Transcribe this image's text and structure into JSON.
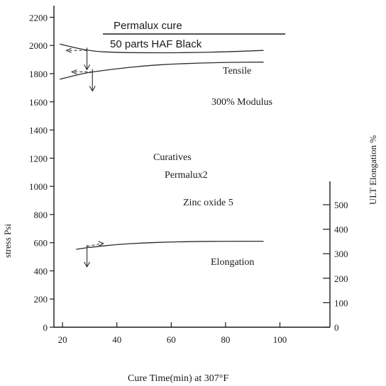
{
  "chart_data": {
    "type": "line",
    "title_line1": "Permalux cure",
    "title_line2": "50 parts HAF Black",
    "xlabel": "Cure Time(min) at 307°F",
    "ylabel_left": "stress Psi",
    "ylabel_right": "ULT Elongation %",
    "xlim": [
      0,
      105
    ],
    "ylim_left": [
      0,
      2400
    ],
    "ylim_right": [
      0,
      500
    ],
    "x_ticks": [
      20,
      40,
      60,
      80,
      100
    ],
    "y_ticks_left": [
      0,
      200,
      400,
      600,
      800,
      1000,
      1200,
      1400,
      1600,
      1800,
      2000,
      2200
    ],
    "y_ticks_right": [
      0,
      100,
      200,
      300,
      400,
      500
    ],
    "grid": false,
    "annotation_lines": [
      "Curatives",
      "Permalux2",
      "Zinc oxide 5"
    ],
    "series": [
      {
        "name": "Tensile",
        "axis": "left",
        "x": [
          19,
          30,
          40,
          50,
          60,
          70,
          80,
          94
        ],
        "y": [
          2010,
          1960,
          1950,
          1948,
          1948,
          1950,
          1955,
          1965
        ]
      },
      {
        "name": "300% Modulus",
        "axis": "left",
        "x": [
          19,
          25,
          30,
          40,
          50,
          60,
          70,
          80,
          94
        ],
        "y": [
          1760,
          1790,
          1810,
          1835,
          1855,
          1868,
          1875,
          1880,
          1882
        ]
      },
      {
        "name": "Elongation",
        "axis": "right",
        "x": [
          25,
          30,
          40,
          50,
          60,
          70,
          80,
          94
        ],
        "y": [
          318,
          326,
          338,
          344,
          348,
          350,
          351,
          351
        ]
      }
    ],
    "optimum_cure_markers": [
      {
        "series": "Tensile",
        "x": 29
      },
      {
        "series": "300% Modulus",
        "x": 31
      },
      {
        "series": "Elongation",
        "x": 29
      }
    ]
  }
}
